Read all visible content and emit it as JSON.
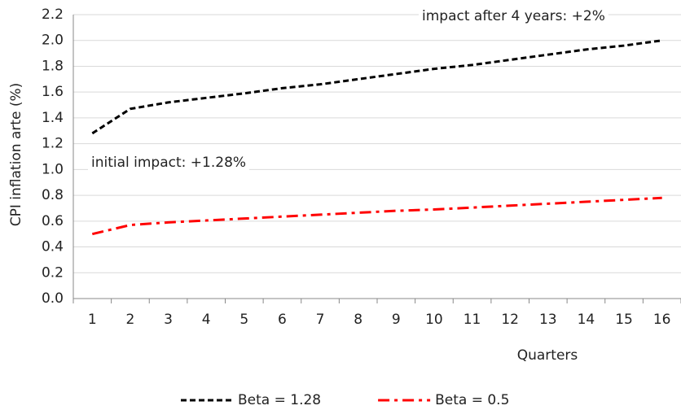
{
  "chart_data": {
    "type": "line",
    "y_label": "CPI inflation arte (%)",
    "x_label": "Quarters",
    "categories": [
      "1",
      "2",
      "3",
      "4",
      "5",
      "6",
      "7",
      "8",
      "9",
      "10",
      "11",
      "12",
      "13",
      "14",
      "15",
      "16"
    ],
    "series": [
      {
        "name": "Beta = 1.28",
        "color": "#000000",
        "line_style": "dashed",
        "values": [
          1.28,
          1.47,
          1.52,
          1.555,
          1.59,
          1.63,
          1.66,
          1.7,
          1.74,
          1.78,
          1.81,
          1.85,
          1.89,
          1.93,
          1.96,
          2.0
        ]
      },
      {
        "name": "Beta = 0.5",
        "color": "#ff0000",
        "line_style": "dash-dot",
        "values": [
          0.5,
          0.57,
          0.59,
          0.605,
          0.62,
          0.635,
          0.65,
          0.665,
          0.68,
          0.69,
          0.705,
          0.72,
          0.735,
          0.75,
          0.765,
          0.78
        ]
      }
    ],
    "annotations": [
      "impact after 4 years: +2%",
      "initial impact: +1.28%"
    ],
    "ylim": [
      0,
      2.2
    ],
    "yticks": [
      {
        "value": 0,
        "label": "0.0"
      },
      {
        "value": 0.2,
        "label": "0.2"
      },
      {
        "value": 0.4,
        "label": "0.4"
      },
      {
        "value": 0.6,
        "label": "0.6"
      },
      {
        "value": 0.8,
        "label": "0.8"
      },
      {
        "value": 1.0,
        "label": "1.0"
      },
      {
        "value": 1.2,
        "label": "1.2"
      },
      {
        "value": 1.4,
        "label": "1.4"
      },
      {
        "value": 1.6,
        "label": "1.6"
      },
      {
        "value": 1.8,
        "label": "1.8"
      },
      {
        "value": 2.0,
        "label": "2.0"
      },
      {
        "value": 2.2,
        "label": "2.2"
      }
    ],
    "grid": true,
    "legend": "bottom"
  }
}
